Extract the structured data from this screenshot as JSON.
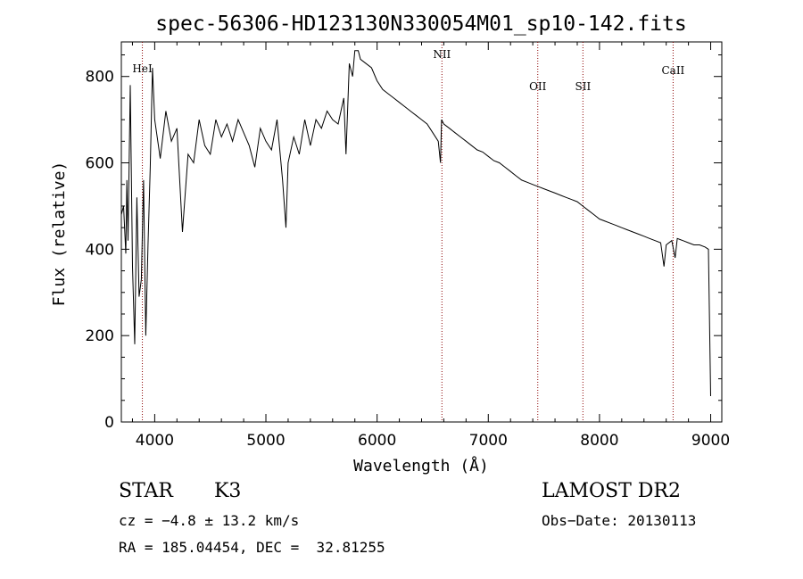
{
  "chart_data": {
    "type": "line",
    "title": "spec-56306-HD123130N330054M01_sp10-142.fits",
    "xlabel": "Wavelength (Å)",
    "ylabel": "Flux (relative)",
    "xlim": [
      3700,
      9100
    ],
    "ylim": [
      0,
      880
    ],
    "xticks": [
      4000,
      5000,
      6000,
      7000,
      8000,
      9000
    ],
    "yticks": [
      0,
      200,
      400,
      600,
      800
    ],
    "grid": false,
    "line_color": "#000000",
    "marker_color": "#8b0000",
    "series": [
      {
        "x": [
          3700,
          3720,
          3740,
          3750,
          3760,
          3780,
          3800,
          3820,
          3840,
          3860,
          3880,
          3900,
          3920,
          3940,
          3960,
          3980,
          4000,
          4050,
          4100,
          4150,
          4200,
          4250,
          4300,
          4350,
          4400,
          4450,
          4500,
          4550,
          4600,
          4650,
          4700,
          4750,
          4800,
          4850,
          4900,
          4950,
          5000,
          5050,
          5100,
          5150,
          5180,
          5200,
          5250,
          5300,
          5350,
          5400,
          5450,
          5500,
          5550,
          5600,
          5650,
          5700,
          5720,
          5750,
          5780,
          5800,
          5830,
          5850,
          5900,
          5950,
          6000,
          6050,
          6100,
          6150,
          6200,
          6250,
          6300,
          6350,
          6400,
          6450,
          6500,
          6550,
          6570,
          6580,
          6600,
          6650,
          6700,
          6750,
          6800,
          6850,
          6900,
          6950,
          7000,
          7050,
          7100,
          7150,
          7200,
          7250,
          7300,
          7350,
          7400,
          7450,
          7500,
          7550,
          7600,
          7650,
          7700,
          7750,
          7800,
          7850,
          7900,
          7950,
          8000,
          8050,
          8100,
          8150,
          8200,
          8250,
          8300,
          8350,
          8400,
          8450,
          8500,
          8550,
          8580,
          8600,
          8650,
          8680,
          8700,
          8750,
          8800,
          8850,
          8900,
          8950,
          8980,
          9000
        ],
        "values": [
          480,
          500,
          390,
          560,
          420,
          780,
          360,
          180,
          520,
          290,
          330,
          560,
          200,
          410,
          590,
          820,
          700,
          610,
          720,
          650,
          680,
          440,
          620,
          600,
          700,
          640,
          620,
          700,
          660,
          690,
          650,
          700,
          670,
          640,
          590,
          680,
          650,
          630,
          700,
          560,
          450,
          600,
          660,
          620,
          700,
          640,
          700,
          680,
          720,
          700,
          690,
          750,
          620,
          830,
          800,
          860,
          860,
          840,
          830,
          820,
          790,
          770,
          760,
          750,
          740,
          730,
          720,
          710,
          700,
          690,
          670,
          650,
          600,
          700,
          690,
          680,
          670,
          660,
          650,
          640,
          630,
          625,
          615,
          605,
          600,
          590,
          580,
          570,
          560,
          555,
          550,
          545,
          540,
          535,
          530,
          525,
          520,
          515,
          510,
          500,
          490,
          480,
          470,
          465,
          460,
          455,
          450,
          445,
          440,
          435,
          430,
          425,
          420,
          415,
          360,
          410,
          420,
          380,
          425,
          420,
          415,
          410,
          410,
          405,
          400,
          60
        ]
      }
    ],
    "lines": [
      {
        "label": "HeI",
        "x": 3889
      },
      {
        "label": "NII",
        "x": 6583
      },
      {
        "label": "OII",
        "x": 7445
      },
      {
        "label": "SII",
        "x": 7851
      },
      {
        "label": "CaII",
        "x": 8662
      }
    ]
  },
  "info": {
    "obj_class": "STAR",
    "subclass": "K3",
    "survey": "LAMOST DR2",
    "cz": "cz = −4.8 ± 13.2 km/s",
    "obs_date": "Obs−Date: 20130113",
    "coords": "RA = 185.04454, DEC =  32.81255"
  }
}
